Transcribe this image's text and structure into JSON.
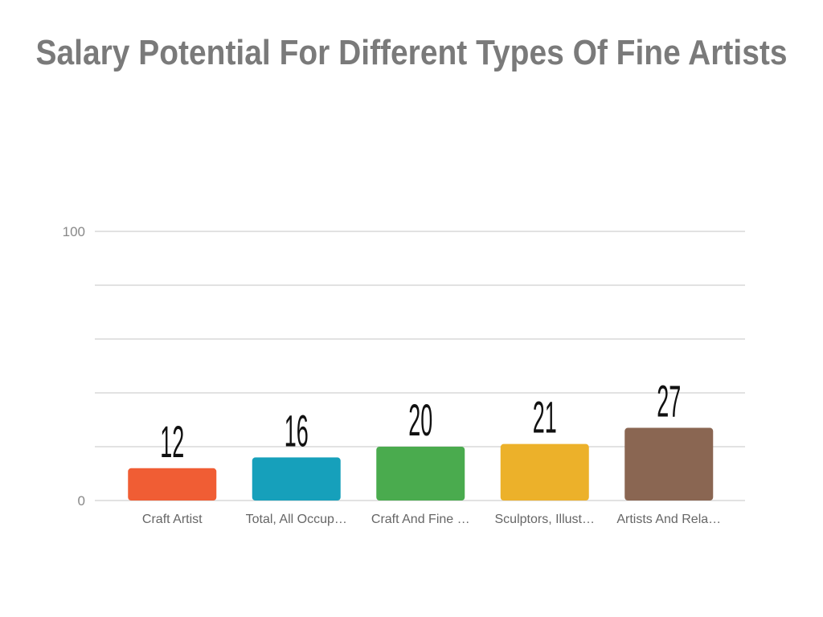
{
  "chart_data": {
    "type": "bar",
    "title": "Salary Potential For Different Types Of Fine Artists",
    "categories": [
      "Craft Artist",
      "Total, All Occup…",
      "Craft And Fine …",
      "Sculptors, Illust…",
      "Artists And Rela…"
    ],
    "values": [
      12,
      16,
      20,
      21,
      27
    ],
    "colors": [
      "#f05d34",
      "#16a0bb",
      "#4aab4e",
      "#ecb12a",
      "#8a6652"
    ],
    "ylim": [
      0,
      100
    ],
    "yticks": [
      0,
      100
    ],
    "ygrid": [
      0,
      20,
      40,
      60,
      80,
      100
    ],
    "grid": true,
    "data_labels": true
  }
}
